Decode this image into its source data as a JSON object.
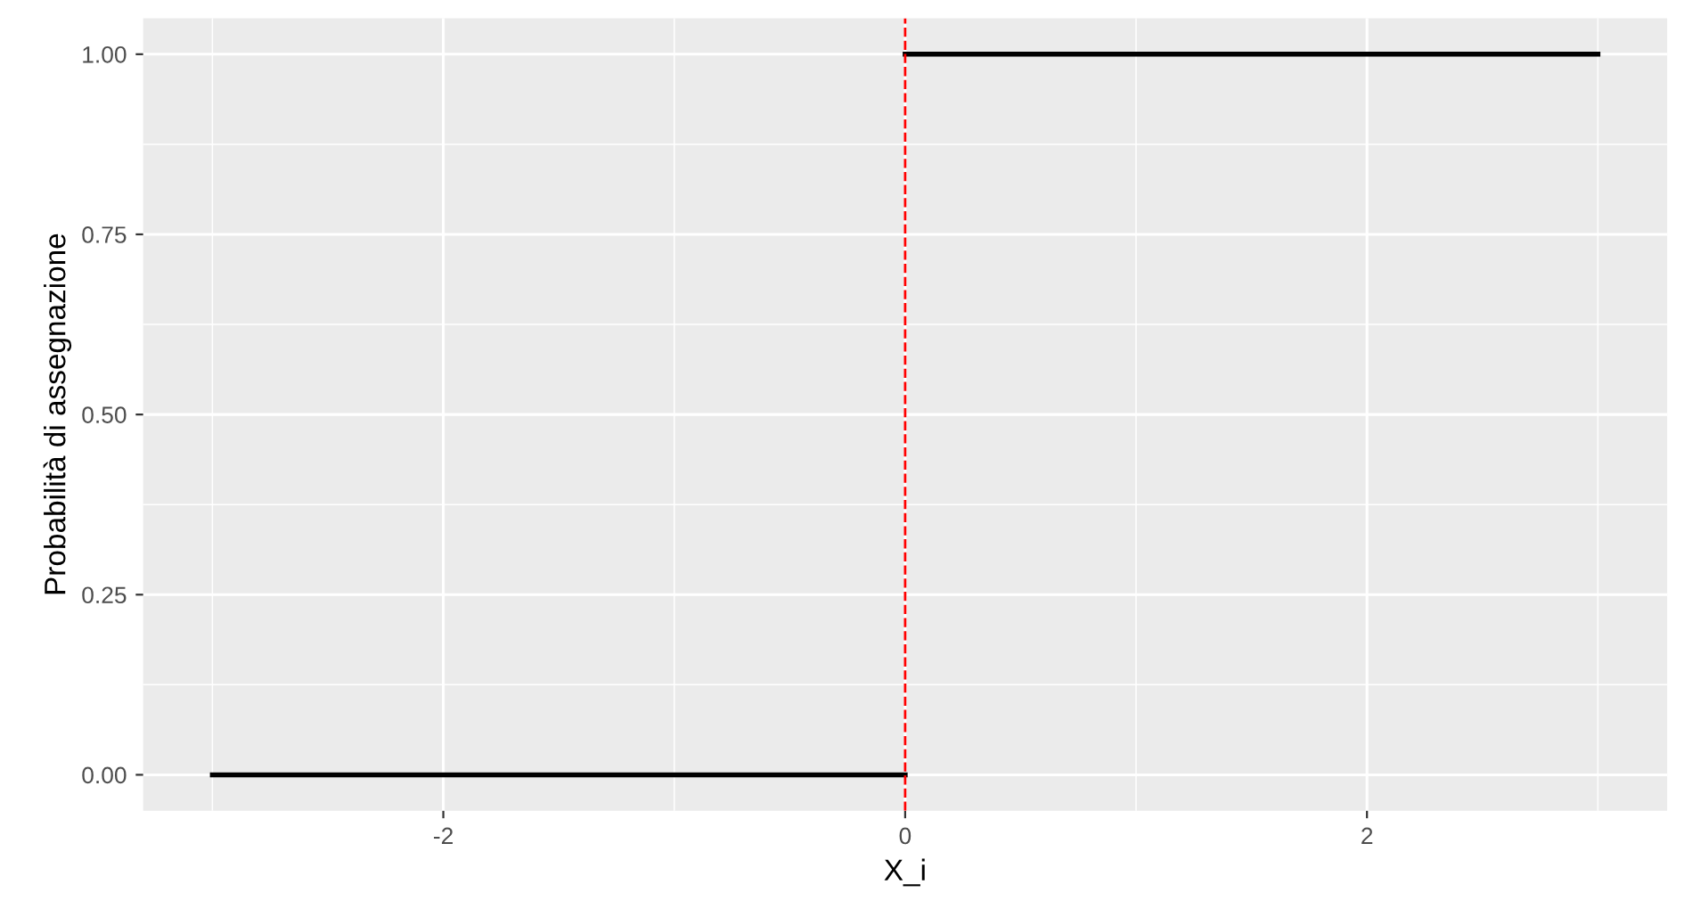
{
  "chart_data": {
    "type": "line",
    "xlabel": "X_i",
    "ylabel": "Probabilità di assegnazione",
    "series": [
      {
        "color": "#000000",
        "x": [
          -3,
          0
        ],
        "values": [
          0,
          0
        ]
      },
      {
        "color": "#000000",
        "x": [
          0,
          3
        ],
        "values": [
          1,
          1
        ]
      }
    ],
    "xlim": [
      -3.3,
      3.3
    ],
    "ylim": [
      -0.05,
      1.05
    ],
    "xticks": [
      -2,
      0,
      2
    ],
    "yticks": [
      {
        "value": 0,
        "label": "0.00"
      },
      {
        "value": 0.25,
        "label": "0.25"
      },
      {
        "value": 0.5,
        "label": "0.50"
      },
      {
        "value": 0.75,
        "label": "0.75"
      },
      {
        "value": 1,
        "label": "1.00"
      }
    ],
    "ref_lines": [
      {
        "axis": "x",
        "value": 0,
        "color": "#ff0000",
        "line_style": "dashed"
      }
    ],
    "grid": true,
    "legend": false,
    "line_style": "solid",
    "marker": "none"
  }
}
